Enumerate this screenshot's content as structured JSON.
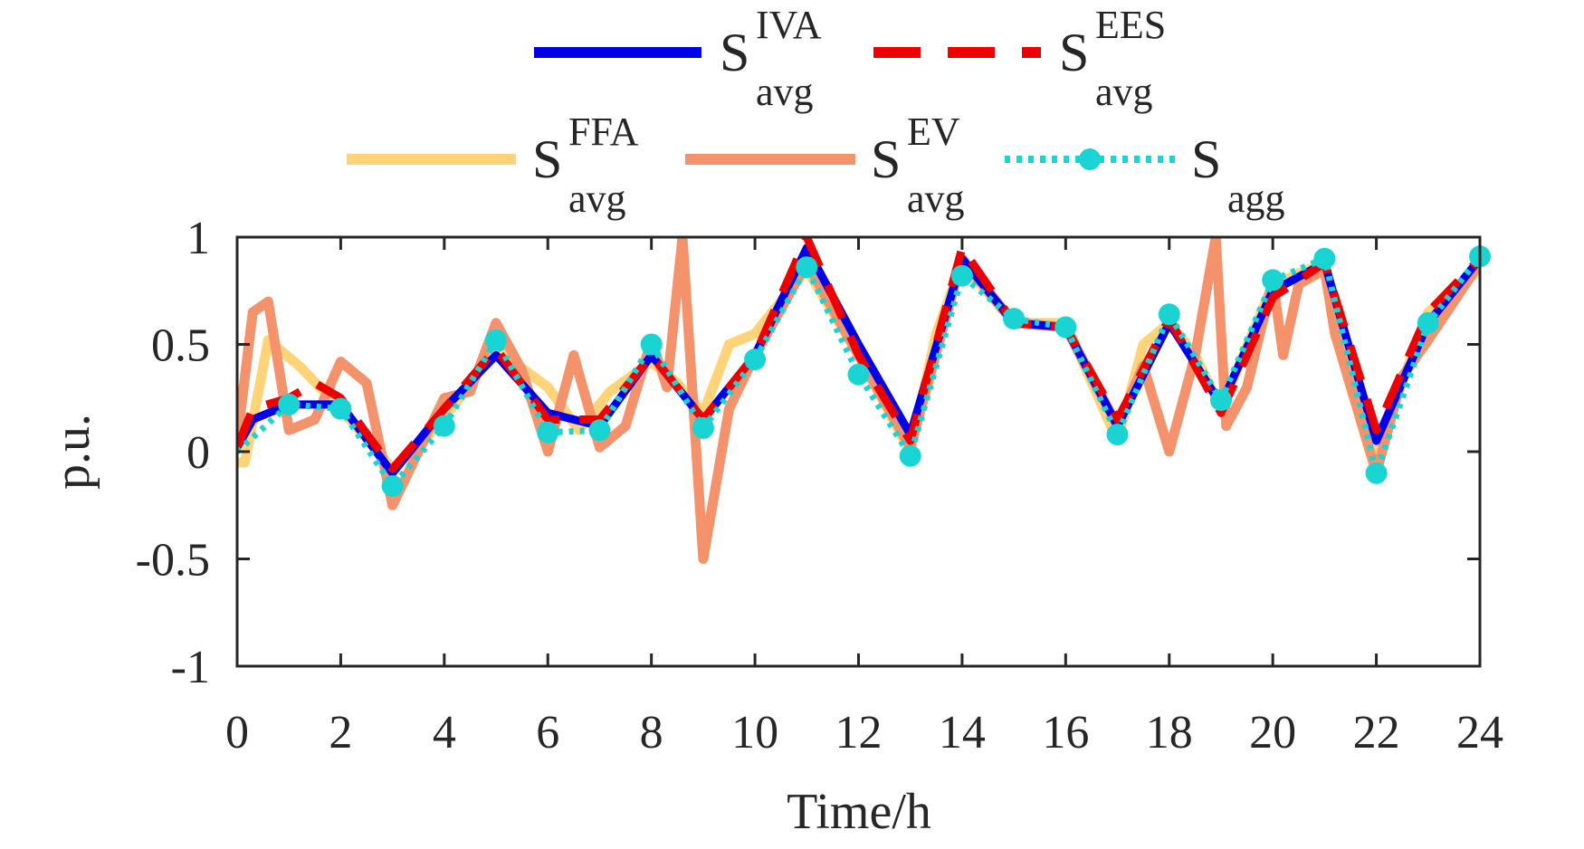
{
  "chart_data": {
    "type": "line",
    "title": "",
    "xlabel": "Time/h",
    "ylabel": "p.u.",
    "xlim": [
      0,
      24
    ],
    "ylim": [
      -1,
      1
    ],
    "xticks": [
      "0",
      "2",
      "4",
      "6",
      "8",
      "10",
      "12",
      "14",
      "16",
      "18",
      "20",
      "22",
      "24"
    ],
    "yticks": [
      "1",
      "0.5",
      "0",
      "-0.5",
      "-1"
    ],
    "grid": false,
    "legend_position": "top",
    "series": [
      {
        "name": "S_avg^IVA",
        "legend_main": "S",
        "legend_sup": "IVA",
        "legend_sub": "avg",
        "color": "#0000e6",
        "style": "solid",
        "x": [
          0,
          0.3,
          1,
          2,
          3,
          4,
          5,
          6,
          7,
          8,
          9,
          10,
          11,
          12,
          13,
          14,
          15,
          16,
          17,
          18,
          19,
          20,
          21,
          22,
          23,
          24
        ],
        "y": [
          0.02,
          0.15,
          0.22,
          0.22,
          -0.1,
          0.2,
          0.45,
          0.18,
          0.12,
          0.45,
          0.15,
          0.45,
          0.95,
          0.5,
          0.08,
          0.9,
          0.6,
          0.58,
          0.12,
          0.6,
          0.22,
          0.75,
          0.88,
          0.05,
          0.6,
          0.9
        ]
      },
      {
        "name": "S_avg^EES",
        "legend_main": "S",
        "legend_sup": "EES",
        "legend_sub": "avg",
        "color": "#ee0000",
        "style": "dashed",
        "x": [
          0,
          0.3,
          1,
          1.5,
          2,
          3,
          4,
          5,
          6,
          7,
          8,
          9,
          10,
          11,
          12,
          13,
          14,
          15,
          16,
          17,
          18,
          19,
          20,
          21,
          22,
          23,
          24
        ],
        "y": [
          0.02,
          0.2,
          0.25,
          0.32,
          0.25,
          -0.08,
          0.2,
          0.48,
          0.15,
          0.15,
          0.45,
          0.15,
          0.45,
          1.0,
          0.45,
          0.05,
          0.95,
          0.6,
          0.58,
          0.15,
          0.62,
          0.18,
          0.72,
          0.88,
          0.1,
          0.65,
          0.9
        ]
      },
      {
        "name": "S_avg^FFA",
        "legend_main": "S",
        "legend_sup": "FFA",
        "legend_sub": "avg",
        "color": "#ffd479",
        "style": "solid",
        "x": [
          0,
          0.15,
          0.6,
          1.2,
          2,
          3,
          3.6,
          4.2,
          5,
          6,
          6.6,
          7.2,
          8,
          8.5,
          9,
          9.5,
          10,
          11,
          12,
          13,
          13.5,
          14,
          15,
          16,
          17,
          17.5,
          18,
          18.5,
          19,
          20,
          21,
          22,
          23,
          24
        ],
        "y": [
          -0.05,
          -0.05,
          0.52,
          0.4,
          0.2,
          -0.08,
          0.05,
          0.22,
          0.48,
          0.3,
          0.1,
          0.28,
          0.42,
          0.32,
          0.18,
          0.5,
          0.55,
          0.85,
          0.45,
          0.0,
          0.55,
          0.88,
          0.6,
          0.6,
          0.05,
          0.5,
          0.6,
          0.45,
          0.2,
          0.78,
          0.88,
          0.0,
          0.65,
          0.85
        ]
      },
      {
        "name": "S_avg^EV",
        "legend_main": "S",
        "legend_sup": "EV",
        "legend_sub": "avg",
        "color": "#f4926b",
        "style": "solid",
        "x": [
          0,
          0.3,
          0.6,
          1.0,
          1.5,
          2.0,
          2.5,
          3.0,
          3.5,
          4.0,
          4.5,
          5.0,
          5.5,
          6.0,
          6.5,
          7.0,
          7.5,
          8.0,
          8.3,
          8.6,
          9.0,
          9.5,
          10,
          11,
          12,
          13,
          14,
          15,
          16,
          17,
          17.5,
          18,
          18.5,
          18.9,
          19.1,
          19.5,
          20,
          20.2,
          20.5,
          21,
          21.2,
          22,
          22.5,
          23,
          24
        ],
        "y": [
          0.05,
          0.65,
          0.7,
          0.1,
          0.15,
          0.42,
          0.32,
          -0.25,
          0.0,
          0.25,
          0.28,
          0.6,
          0.38,
          0.0,
          0.45,
          0.02,
          0.12,
          0.52,
          0.3,
          1.0,
          -0.5,
          0.2,
          0.45,
          0.88,
          0.45,
          0.02,
          0.9,
          0.6,
          0.58,
          0.12,
          0.4,
          0.0,
          0.45,
          1.0,
          0.12,
          0.3,
          0.8,
          0.45,
          0.78,
          0.85,
          0.55,
          -0.1,
          0.35,
          0.52,
          0.88
        ]
      },
      {
        "name": "S_agg",
        "legend_main": "S",
        "legend_sup": "",
        "legend_sub": "agg",
        "color": "#1ad4d4",
        "style": "dotted-markers",
        "x": [
          0,
          1,
          2,
          3,
          4,
          5,
          6,
          7,
          8,
          9,
          10,
          11,
          12,
          13,
          14,
          15,
          16,
          17,
          18,
          19,
          20,
          21,
          22,
          23,
          24
        ],
        "y": [
          0.0,
          0.22,
          0.2,
          -0.16,
          0.12,
          0.52,
          0.09,
          0.1,
          0.5,
          0.11,
          0.43,
          0.86,
          0.36,
          -0.02,
          0.82,
          0.62,
          0.58,
          0.08,
          0.64,
          0.24,
          0.8,
          0.9,
          -0.1,
          0.6,
          0.91
        ]
      }
    ]
  }
}
